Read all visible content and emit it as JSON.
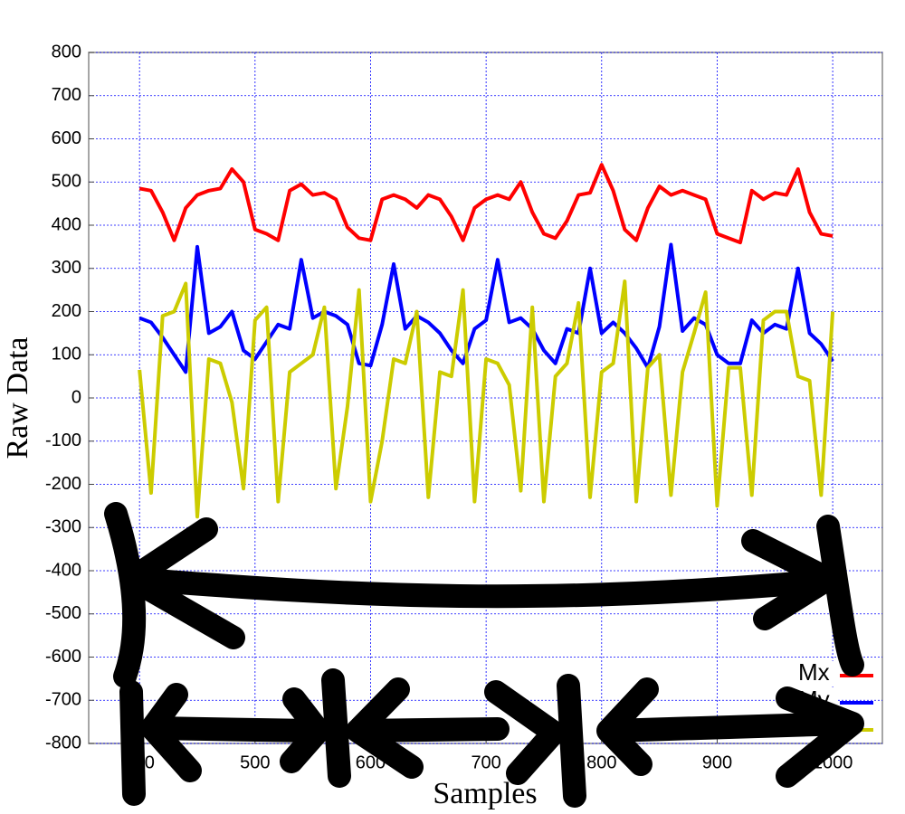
{
  "chart_data": {
    "type": "line",
    "xlabel": "Samples",
    "ylabel": "Raw Data",
    "x": [
      400,
      410,
      420,
      430,
      440,
      450,
      460,
      470,
      480,
      490,
      500,
      510,
      520,
      530,
      540,
      550,
      560,
      570,
      580,
      590,
      600,
      610,
      620,
      630,
      640,
      650,
      660,
      670,
      680,
      690,
      700,
      710,
      720,
      730,
      740,
      750,
      760,
      770,
      780,
      790,
      800,
      810,
      820,
      830,
      840,
      850,
      860,
      870,
      880,
      890,
      900,
      910,
      920,
      930,
      940,
      950,
      960,
      970,
      980,
      990,
      1000
    ],
    "series": [
      {
        "name": "Mx",
        "color": "#ff0000",
        "values": [
          485,
          480,
          430,
          365,
          440,
          470,
          480,
          485,
          530,
          500,
          390,
          380,
          365,
          480,
          495,
          470,
          475,
          460,
          395,
          370,
          365,
          460,
          470,
          460,
          440,
          470,
          460,
          420,
          365,
          440,
          460,
          470,
          460,
          500,
          430,
          380,
          370,
          410,
          470,
          475,
          540,
          480,
          390,
          365,
          440,
          490,
          470,
          480,
          470,
          460,
          380,
          370,
          360,
          480,
          460,
          475,
          470,
          530,
          430,
          380,
          375
        ]
      },
      {
        "name": "My",
        "color": "#0000ff",
        "values": [
          185,
          175,
          140,
          100,
          60,
          350,
          150,
          165,
          200,
          110,
          90,
          130,
          170,
          160,
          320,
          185,
          200,
          190,
          170,
          80,
          75,
          170,
          310,
          160,
          190,
          175,
          150,
          110,
          80,
          160,
          180,
          320,
          175,
          185,
          160,
          110,
          80,
          160,
          150,
          300,
          150,
          175,
          150,
          115,
          70,
          165,
          355,
          155,
          185,
          170,
          100,
          80,
          80,
          180,
          150,
          170,
          160,
          300,
          150,
          125,
          85
        ]
      },
      {
        "name": "Mz",
        "color": "#cccc00",
        "values": [
          65,
          -220,
          190,
          200,
          265,
          -275,
          90,
          80,
          -10,
          -210,
          180,
          210,
          -240,
          60,
          80,
          100,
          210,
          -210,
          -20,
          250,
          -240,
          -100,
          90,
          80,
          200,
          -230,
          60,
          50,
          250,
          -240,
          90,
          80,
          30,
          -215,
          210,
          -240,
          50,
          80,
          220,
          -230,
          60,
          80,
          270,
          -240,
          70,
          100,
          -225,
          60,
          150,
          245,
          -250,
          70,
          70,
          -225,
          180,
          200,
          200,
          50,
          40,
          -225,
          200
        ]
      }
    ],
    "xlim": [
      356,
      1043
    ],
    "xticks": [
      400,
      500,
      600,
      700,
      800,
      900,
      1000
    ],
    "ylim": [
      -800,
      800
    ],
    "yticks": [
      -800,
      -700,
      -600,
      -500,
      -400,
      -300,
      -200,
      -100,
      0,
      100,
      200,
      300,
      400,
      500,
      600,
      700,
      800
    ],
    "grid": true,
    "legend": "lower right"
  }
}
